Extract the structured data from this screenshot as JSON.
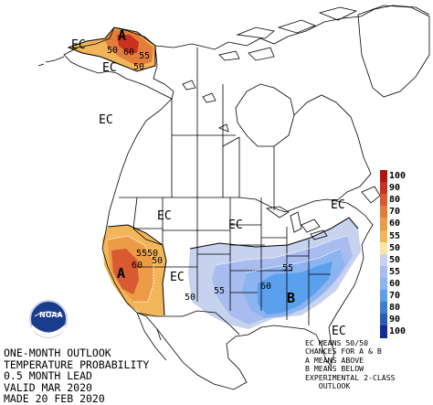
{
  "title_lines": [
    "ONE-MONTH OUTLOOK",
    "TEMPERATURE PROBABILITY",
    "0.5 MONTH LEAD",
    "VALID MAR 2020",
    "MADE 20 FEB 2020"
  ],
  "notes_lines": [
    "EC MEANS 50/50",
    "CHANCES FOR A & B",
    "A MEANS ABOVE",
    "B MEANS BELOW",
    "EXPERIMENTAL 2-CLASS",
    "   OUTLOOK"
  ],
  "logo_text": "NOAA",
  "legend": {
    "levels": [
      {
        "label": "100",
        "color": "#b4140f"
      },
      {
        "label": "90",
        "color": "#c8321e"
      },
      {
        "label": "80",
        "color": "#d95a32"
      },
      {
        "label": "70",
        "color": "#e37d3c"
      },
      {
        "label": "60",
        "color": "#ec9b46"
      },
      {
        "label": "55",
        "color": "#f2b65a"
      },
      {
        "label": "50",
        "color": "#fae6a0"
      },
      {
        "label": "50",
        "color": "#c6d2ee"
      },
      {
        "label": "55",
        "color": "#a8bcf0"
      },
      {
        "label": "60",
        "color": "#8cb4f0"
      },
      {
        "label": "70",
        "color": "#5aa0ec"
      },
      {
        "label": "80",
        "color": "#3c7ed2"
      },
      {
        "label": "90",
        "color": "#2a5ab4"
      },
      {
        "label": "100",
        "color": "#142a96"
      }
    ]
  },
  "map_labels": {
    "ec_alaska_west": "EC",
    "ec_alaska_mid": "EC",
    "ec_canada_west": "EC",
    "ec_west": "EC",
    "ec_central": "EC",
    "ec_east": "EC",
    "ec_florida": "EC",
    "ec_sw": "EC",
    "a_alaska": "A",
    "a_california": "A",
    "b_southeast": "B",
    "iso_ak_60": "60",
    "iso_ak_50a": "50",
    "iso_ak_50b": "50",
    "iso_ak_55": "55",
    "iso_ca_5550": "5550",
    "iso_ca_60": "60",
    "iso_ca_50": "50",
    "iso_se_50": "50",
    "iso_se_55a": "55",
    "iso_se_60": "60",
    "iso_se_55b": "55"
  },
  "colors": {
    "above_55": "#f2b65a",
    "above_60": "#ec9b46",
    "above_70": "#e37d3c",
    "above_80": "#d95a32",
    "above_90": "#c8321e",
    "below_50": "#c6d2ee",
    "below_55": "#a8bcf0",
    "below_60": "#8cb4f0",
    "below_70": "#5aa0ec",
    "lines": "#000000",
    "isolines": "#ffffff"
  }
}
